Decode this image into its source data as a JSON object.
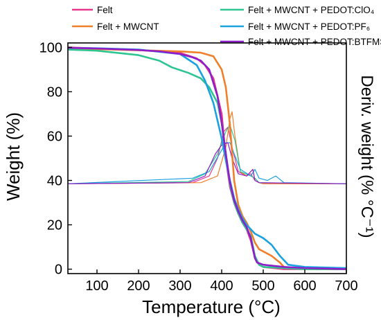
{
  "chart_data": {
    "type": "line",
    "title": "",
    "xlabel": "Temperature (°C)",
    "ylabel": "Weight (%)",
    "y2label": "Deriv. weight (% °C⁻¹)",
    "xlim": [
      30,
      700
    ],
    "ylim": [
      -2,
      102
    ],
    "xticks": [
      100,
      200,
      300,
      400,
      500,
      600,
      700
    ],
    "yticks": [
      0,
      20,
      40,
      60,
      80,
      100
    ],
    "legend_position": "top",
    "series": [
      {
        "name": "Felt",
        "color": "#e8378a",
        "x": [
          30,
          100,
          200,
          300,
          340,
          360,
          380,
          400,
          410,
          420,
          430,
          440,
          450,
          460,
          470,
          480,
          490,
          500,
          550,
          600,
          700
        ],
        "y": [
          100,
          99.5,
          98.8,
          97.5,
          95,
          92,
          86,
          70,
          50,
          37,
          30,
          25,
          21,
          18,
          13,
          5,
          2,
          1,
          0,
          0,
          0
        ],
        "deriv_x": [
          30,
          330,
          370,
          390,
          405,
          415,
          425,
          440,
          460,
          470,
          480,
          490,
          500,
          700
        ],
        "deriv_y": [
          38.5,
          39,
          42,
          50,
          62,
          64,
          55,
          44,
          42,
          43,
          40,
          39,
          38.5,
          38.5
        ]
      },
      {
        "name": "Felt + MWCNT",
        "color": "#f07f2a",
        "x": [
          30,
          100,
          200,
          300,
          350,
          380,
          400,
          410,
          420,
          430,
          440,
          450,
          460,
          470,
          480,
          490,
          500,
          520,
          540,
          550,
          600,
          700
        ],
        "y": [
          99.5,
          99.2,
          98.7,
          98.2,
          97.6,
          96,
          90,
          82,
          65,
          40,
          29,
          24,
          21,
          17,
          12,
          9,
          8,
          6,
          3,
          1,
          0,
          0
        ],
        "deriv_x": [
          30,
          350,
          390,
          410,
          420,
          425,
          432,
          445,
          460,
          475,
          480,
          490,
          500,
          700
        ],
        "deriv_y": [
          38.5,
          39,
          42,
          55,
          68,
          71,
          60,
          44,
          42,
          45,
          40,
          39,
          38.5,
          38.5
        ]
      },
      {
        "name": "Felt + MWCNT + PEDOT:ClO₄",
        "color": "#2ec590",
        "x": [
          30,
          100,
          200,
          250,
          280,
          320,
          350,
          370,
          390,
          400,
          410,
          420,
          430,
          440,
          450,
          470,
          480,
          490,
          500,
          600,
          700
        ],
        "y": [
          99,
          98.5,
          96.5,
          94,
          91,
          88.5,
          86,
          82,
          75,
          66,
          52,
          38,
          30,
          25,
          21,
          15,
          6,
          2,
          1,
          0,
          0
        ],
        "deriv_x": [
          30,
          320,
          360,
          390,
          410,
          420,
          432,
          445,
          470,
          480,
          490,
          700
        ],
        "deriv_y": [
          38.5,
          39.5,
          43,
          52,
          62,
          65,
          58,
          44,
          42,
          41,
          39,
          38.5
        ]
      },
      {
        "name": "Felt + MWCNT + PEDOT:PF₆",
        "color": "#1aa1e0",
        "x": [
          30,
          100,
          200,
          300,
          340,
          360,
          380,
          390,
          400,
          410,
          420,
          430,
          440,
          450,
          460,
          470,
          480,
          500,
          520,
          540,
          560,
          600,
          700
        ],
        "y": [
          99.8,
          99.6,
          99,
          97,
          92,
          85,
          75,
          67,
          59,
          49,
          40,
          32,
          27,
          23,
          20,
          18,
          16,
          14,
          11,
          6,
          2,
          1,
          0.5
        ],
        "deriv_x": [
          30,
          330,
          370,
          395,
          410,
          420,
          430,
          445,
          470,
          480,
          490,
          510,
          530,
          550,
          700
        ],
        "deriv_y": [
          38.5,
          41,
          44,
          52,
          57,
          57,
          52,
          45,
          42,
          45,
          41,
          40,
          42,
          39,
          38.5
        ]
      },
      {
        "name": "Felt + MWCNT + PEDOT:BTFMSI",
        "color": "#8d1ec9",
        "x": [
          30,
          100,
          200,
          250,
          300,
          330,
          350,
          370,
          390,
          400,
          410,
          420,
          430,
          440,
          450,
          460,
          470,
          480,
          485,
          500,
          550,
          600,
          700
        ],
        "y": [
          99.8,
          99.5,
          98.8,
          98.2,
          97,
          95.5,
          94,
          90,
          78,
          66,
          52,
          39,
          31,
          26,
          22,
          19,
          14,
          5,
          3,
          2,
          1,
          0.5,
          0
        ],
        "deriv_x": [
          30,
          320,
          360,
          385,
          400,
          415,
          425,
          440,
          460,
          475,
          480,
          490,
          700
        ],
        "deriv_y": [
          38.5,
          39,
          42,
          52,
          56,
          57,
          50,
          43,
          42,
          45,
          40,
          39,
          38.5
        ]
      }
    ]
  }
}
